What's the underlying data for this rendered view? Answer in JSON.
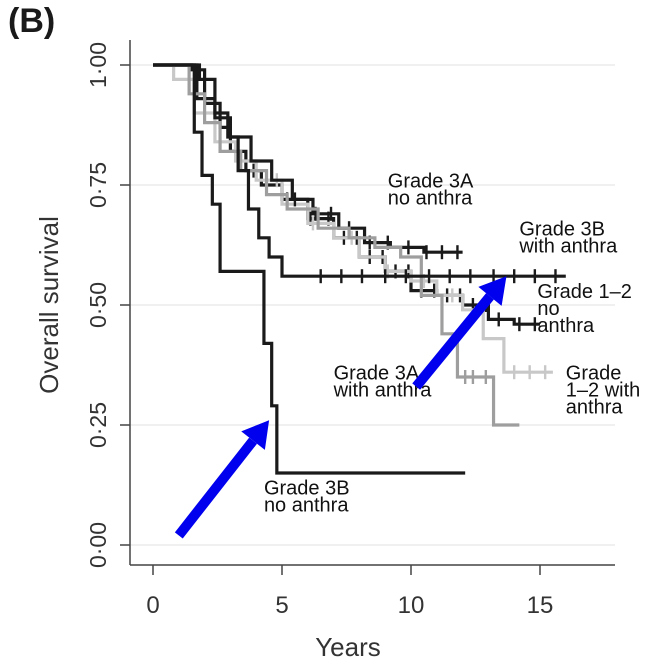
{
  "panel_label": "(B)",
  "chart_data": {
    "type": "line",
    "xlabel": "Years",
    "ylabel": "Overall survival",
    "xlim": [
      0,
      17.5
    ],
    "ylim": [
      0,
      1.0
    ],
    "x_ticks": [
      0,
      5,
      10,
      15
    ],
    "x_tick_labels": [
      "0",
      "5",
      "10",
      "15"
    ],
    "y_ticks": [
      0,
      0.25,
      0.5,
      0.75,
      1.0
    ],
    "y_tick_labels": [
      "0·00",
      "0·25",
      "0·50",
      "0·75",
      "1·00"
    ],
    "grid": "horizontal",
    "legend": "none",
    "series": [
      {
        "label_lines": [
          "Grade 1–2",
          "no",
          "anthra"
        ],
        "color": "#1a1a1a",
        "points": [
          [
            0,
            1.0
          ],
          [
            1.5,
            0.99
          ],
          [
            2,
            0.92
          ],
          [
            2.6,
            0.87
          ],
          [
            3,
            0.82
          ],
          [
            3.6,
            0.78
          ],
          [
            4.2,
            0.75
          ],
          [
            5,
            0.72
          ],
          [
            6,
            0.68
          ],
          [
            7,
            0.64
          ],
          [
            8,
            0.6
          ],
          [
            9,
            0.57
          ],
          [
            10,
            0.53
          ],
          [
            11,
            0.52
          ],
          [
            12,
            0.5
          ],
          [
            13,
            0.47
          ],
          [
            14,
            0.46
          ],
          [
            15,
            0.46
          ]
        ],
        "censor_x": [
          3.2,
          3.9,
          5.2,
          6.1,
          6.8,
          7.4,
          7.9,
          8.4,
          8.9,
          9.4,
          9.9,
          10.4,
          10.9,
          11.4,
          11.9,
          12.4,
          12.9,
          13.4,
          14.2,
          14.8
        ]
      },
      {
        "label_lines": [
          "Grade",
          "1–2 with",
          "anthra"
        ],
        "color": "#c8c8c8",
        "points": [
          [
            0,
            1.0
          ],
          [
            0.8,
            0.97
          ],
          [
            1.6,
            0.9
          ],
          [
            2.4,
            0.84
          ],
          [
            3.2,
            0.8
          ],
          [
            4,
            0.76
          ],
          [
            5,
            0.71
          ],
          [
            6,
            0.67
          ],
          [
            7,
            0.64
          ],
          [
            8,
            0.6
          ],
          [
            9,
            0.57
          ],
          [
            10,
            0.55
          ],
          [
            11,
            0.52
          ],
          [
            12,
            0.49
          ],
          [
            12.8,
            0.43
          ],
          [
            13.6,
            0.36
          ],
          [
            14.5,
            0.36
          ],
          [
            15.5,
            0.36
          ]
        ],
        "censor_x": [
          4.8,
          6.2,
          7.7,
          9.1,
          10.5,
          11.6,
          14.0,
          14.6,
          15.2
        ]
      },
      {
        "label_lines": [
          "Grade 3A",
          "no anthra"
        ],
        "color": "#1a1a1a",
        "points": [
          [
            0,
            1.0
          ],
          [
            1.7,
            0.93
          ],
          [
            2.4,
            0.89
          ],
          [
            3.0,
            0.85
          ],
          [
            3.8,
            0.8
          ],
          [
            4.6,
            0.76
          ],
          [
            5.4,
            0.72
          ],
          [
            6.2,
            0.69
          ],
          [
            7.2,
            0.66
          ],
          [
            8.2,
            0.63
          ],
          [
            9.2,
            0.62
          ],
          [
            10.5,
            0.61
          ],
          [
            12,
            0.61
          ]
        ],
        "censor_x": [
          5.5,
          6.3,
          6.9,
          7.6,
          8.4,
          9.1,
          9.9,
          10.6,
          11.2,
          11.8
        ]
      },
      {
        "label_lines": [
          "Grade 3A",
          "with anthra"
        ],
        "color": "#9e9e9e",
        "points": [
          [
            0,
            1.0
          ],
          [
            1.4,
            0.94
          ],
          [
            2.0,
            0.88
          ],
          [
            2.6,
            0.82
          ],
          [
            3.4,
            0.78
          ],
          [
            4.4,
            0.73
          ],
          [
            5.2,
            0.7
          ],
          [
            6.4,
            0.66
          ],
          [
            7.6,
            0.64
          ],
          [
            8.6,
            0.62
          ],
          [
            9.6,
            0.6
          ],
          [
            10.4,
            0.52
          ],
          [
            11.2,
            0.44
          ],
          [
            11.8,
            0.35
          ],
          [
            12.6,
            0.35
          ],
          [
            13.2,
            0.25
          ],
          [
            14.2,
            0.25
          ]
        ],
        "censor_x": [
          12.1,
          12.4,
          12.9
        ]
      },
      {
        "label_lines": [
          "Grade 3B",
          "with anthra"
        ],
        "color": "#1a1a1a",
        "points": [
          [
            0,
            1.0
          ],
          [
            1.8,
            0.97
          ],
          [
            2.4,
            0.9
          ],
          [
            2.9,
            0.85
          ],
          [
            3.3,
            0.78
          ],
          [
            3.7,
            0.7
          ],
          [
            4.1,
            0.64
          ],
          [
            4.5,
            0.6
          ],
          [
            5,
            0.56
          ],
          [
            16,
            0.56
          ]
        ],
        "censor_x": [
          6.5,
          7.3,
          8.1,
          9.0,
          9.8,
          10.7,
          11.5,
          12.3,
          13.2,
          14.0,
          14.8,
          15.6
        ]
      },
      {
        "label_lines": [
          "Grade 3B",
          "no anthra"
        ],
        "color": "#1a1a1a",
        "points": [
          [
            0,
            1.0
          ],
          [
            1.6,
            1.0
          ],
          [
            1.6,
            0.86
          ],
          [
            1.9,
            0.77
          ],
          [
            2.3,
            0.71
          ],
          [
            2.6,
            0.57
          ],
          [
            4.2,
            0.57
          ],
          [
            4.3,
            0.42
          ],
          [
            4.6,
            0.29
          ],
          [
            4.8,
            0.15
          ],
          [
            12.1,
            0.15
          ]
        ],
        "censor_x": []
      }
    ],
    "annotations": [
      {
        "lines": [
          "Grade 3A",
          "no anthra"
        ],
        "x": 9.1,
        "y": 0.745,
        "anchor": "start"
      },
      {
        "lines": [
          "Grade 3B",
          "with anthra"
        ],
        "x": 14.2,
        "y": 0.645,
        "anchor": "start"
      },
      {
        "lines": [
          "Grade 1–2",
          "no",
          "anthra"
        ],
        "x": 14.9,
        "y": 0.515,
        "anchor": "start"
      },
      {
        "lines": [
          "Grade 3A",
          "with anthra"
        ],
        "x": 7.0,
        "y": 0.345,
        "anchor": "start"
      },
      {
        "lines": [
          "Grade",
          "1–2 with",
          "anthra"
        ],
        "x": 16.0,
        "y": 0.345,
        "anchor": "start"
      },
      {
        "lines": [
          "Grade 3B",
          "no anthra"
        ],
        "x": 4.3,
        "y": 0.105,
        "anchor": "start"
      }
    ],
    "arrows": [
      {
        "color": "#0000ee",
        "from": [
          1.0,
          0.02
        ],
        "to": [
          4.5,
          0.26
        ]
      },
      {
        "color": "#0000ee",
        "from": [
          10.2,
          0.33
        ],
        "to": [
          13.7,
          0.56
        ]
      }
    ]
  }
}
